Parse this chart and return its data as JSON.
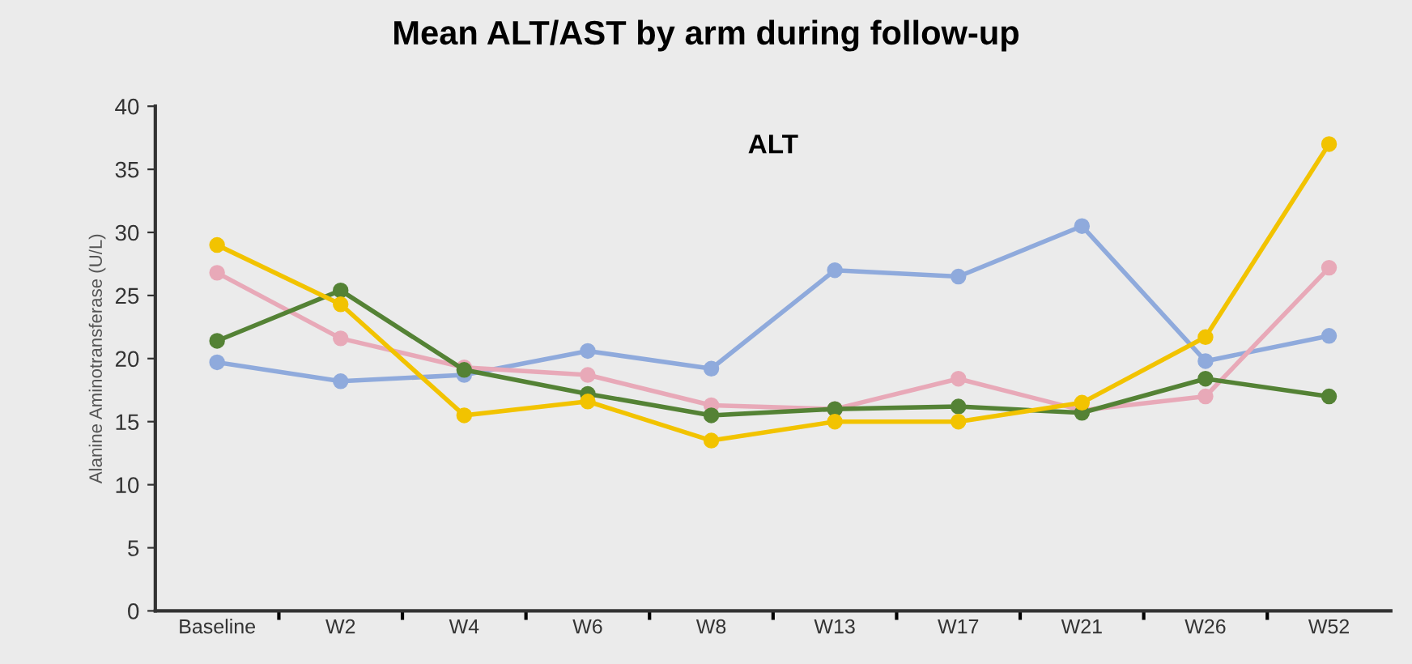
{
  "chart_data": {
    "type": "line",
    "title": "Mean ALT/AST by arm during follow-up",
    "subtitle": "ALT",
    "ylabel": "Alanine Aminotransferase (U/L)",
    "categories": [
      "Baseline",
      "W2",
      "W4",
      "W6",
      "W8",
      "W13",
      "W17",
      "W21",
      "W26",
      "W52"
    ],
    "series": [
      {
        "color": "#8faadc",
        "values": [
          19.7,
          18.2,
          18.7,
          20.6,
          19.2,
          27,
          26.5,
          30.5,
          19.8,
          21.8
        ]
      },
      {
        "color": "#e8a9b8",
        "values": [
          26.8,
          21.6,
          19.3,
          18.7,
          16.3,
          16,
          18.4,
          15.9,
          17,
          27.2
        ]
      },
      {
        "color": "#548235",
        "values": [
          21.4,
          25.4,
          19.1,
          17.2,
          15.5,
          16,
          16.2,
          15.7,
          18.4,
          17
        ]
      },
      {
        "color": "#f2c300",
        "values": [
          29,
          24.3,
          15.5,
          16.6,
          13.5,
          15,
          15,
          16.5,
          21.7,
          37
        ]
      }
    ],
    "ylim": [
      0,
      40
    ],
    "yticks": [
      0,
      5,
      10,
      15,
      20,
      25,
      30,
      35,
      40
    ],
    "grid": false,
    "legend": false,
    "marker": "circle",
    "line_style": "solid"
  }
}
